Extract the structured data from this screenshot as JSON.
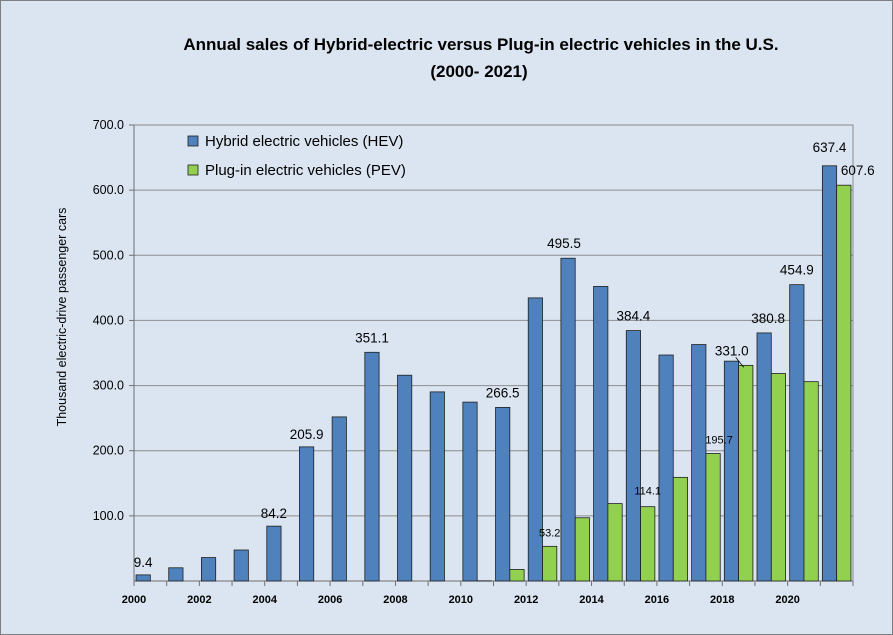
{
  "chart_data": {
    "type": "bar",
    "title": "Annual sales of Hybrid-electric  versus Plug-in electric vehicles in the U.S.",
    "subtitle": "(2000- 2021)",
    "xlabel": "",
    "ylabel": "Thousand electric-drive passenger cars",
    "ylim": [
      0,
      700
    ],
    "yticks": [
      "100.0",
      "200.0",
      "300.0",
      "400.0",
      "500.0",
      "600.0",
      "700.0"
    ],
    "grid": true,
    "legend": "top-left",
    "categories": [
      "2000",
      "2001",
      "2002",
      "2003",
      "2004",
      "2005",
      "2006",
      "2007",
      "2008",
      "2009",
      "2010",
      "2011",
      "2012",
      "2013",
      "2014",
      "2015",
      "2016",
      "2017",
      "2018",
      "2019",
      "2020",
      "2021"
    ],
    "xtick_labels": [
      "2000",
      "",
      "2002",
      "",
      "2004",
      "",
      "2006",
      "",
      "2008",
      "",
      "2010",
      "",
      "2012",
      "",
      "2014",
      "",
      "2016",
      "",
      "2018",
      "",
      "2020",
      ""
    ],
    "series": [
      {
        "name": "Hybrid electric vehicles (HEV)",
        "color": "#4f81bd",
        "values": [
          9.4,
          20.3,
          36.0,
          47.6,
          84.2,
          205.9,
          251.9,
          351.1,
          315.9,
          290.3,
          274.6,
          266.5,
          434.6,
          495.5,
          452.2,
          384.4,
          346.9,
          363.0,
          337.5,
          380.8,
          454.9,
          637.4
        ]
      },
      {
        "name": "Plug-in electric vehicles (PEV)",
        "color": "#92d050",
        "values": [
          0,
          0,
          0,
          0,
          0,
          0,
          0,
          0,
          0,
          0,
          0.3,
          17.7,
          53.2,
          97.1,
          118.8,
          114.1,
          159.1,
          195.7,
          331.0,
          318.5,
          306.0,
          607.6
        ]
      }
    ],
    "data_labels": [
      {
        "series": 0,
        "index": 0,
        "text": "9.4",
        "size": "large"
      },
      {
        "series": 0,
        "index": 4,
        "text": "84.2",
        "size": "large"
      },
      {
        "series": 0,
        "index": 5,
        "text": "205.9",
        "size": "large"
      },
      {
        "series": 0,
        "index": 7,
        "text": "351.1",
        "size": "large"
      },
      {
        "series": 0,
        "index": 11,
        "text": "266.5",
        "size": "large"
      },
      {
        "series": 0,
        "index": 13,
        "text": "495.5",
        "size": "large"
      },
      {
        "series": 0,
        "index": 15,
        "text": "384.4",
        "size": "large"
      },
      {
        "series": 0,
        "index": 19,
        "text": "380.8",
        "size": "large"
      },
      {
        "series": 0,
        "index": 20,
        "text": "454.9",
        "size": "large"
      },
      {
        "series": 0,
        "index": 21,
        "text": "637.4",
        "size": "large"
      },
      {
        "series": 1,
        "index": 12,
        "text": "53.2",
        "size": "small"
      },
      {
        "series": 1,
        "index": 15,
        "text": "114.1",
        "size": "small"
      },
      {
        "series": 1,
        "index": 17,
        "text": "195.7",
        "size": "small"
      },
      {
        "series": 1,
        "index": 18,
        "text": "331.0",
        "size": "large"
      },
      {
        "series": 1,
        "index": 21,
        "text": "607.6",
        "size": "large"
      }
    ]
  }
}
